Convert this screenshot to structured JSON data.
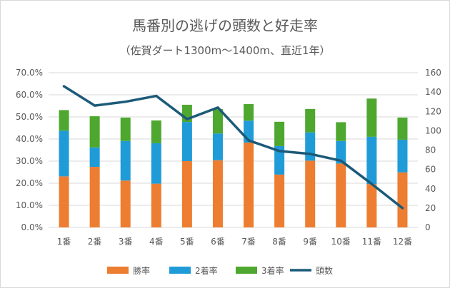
{
  "chart_data": {
    "type": "bar",
    "title": "馬番別の逃げの頭数と好走率",
    "subtitle": "（佐賀ダート1300m～1400m、直近1年）",
    "categories": [
      "1番",
      "2番",
      "3番",
      "4番",
      "5番",
      "6番",
      "7番",
      "8番",
      "9番",
      "10番",
      "11番",
      "12番"
    ],
    "stacked": true,
    "series": [
      {
        "name": "勝率",
        "type": "bar",
        "axis": "left",
        "color": "#ed7d31",
        "values": [
          23.1,
          27.4,
          21.2,
          19.8,
          30.0,
          30.4,
          38.4,
          23.9,
          30.2,
          28.9,
          19.6,
          24.9
        ]
      },
      {
        "name": "2着率",
        "type": "bar",
        "axis": "left",
        "color": "#1f9bd7",
        "values": [
          20.7,
          8.8,
          17.9,
          18.3,
          17.7,
          12.1,
          9.9,
          12.9,
          12.8,
          10.2,
          21.4,
          14.8
        ]
      },
      {
        "name": "3着率",
        "type": "bar",
        "axis": "left",
        "color": "#4ea72e",
        "values": [
          9.3,
          14.1,
          10.6,
          10.3,
          7.8,
          11.0,
          7.5,
          11.0,
          10.6,
          8.5,
          17.3,
          10.0
        ]
      },
      {
        "name": "頭数",
        "type": "line",
        "axis": "right",
        "color": "#1b5a78",
        "values": [
          146,
          126,
          130,
          136,
          112,
          124,
          90,
          79,
          76,
          69,
          45,
          20
        ]
      }
    ],
    "left_axis": {
      "ylim": [
        0,
        70
      ],
      "ticks": [
        "0.0%",
        "10.0%",
        "20.0%",
        "30.0%",
        "40.0%",
        "50.0%",
        "60.0%",
        "70.0%"
      ]
    },
    "right_axis": {
      "ylim": [
        0,
        160
      ],
      "ticks": [
        "0",
        "20",
        "40",
        "60",
        "80",
        "100",
        "120",
        "140",
        "160"
      ]
    },
    "grid": true,
    "legend": "bottom"
  }
}
